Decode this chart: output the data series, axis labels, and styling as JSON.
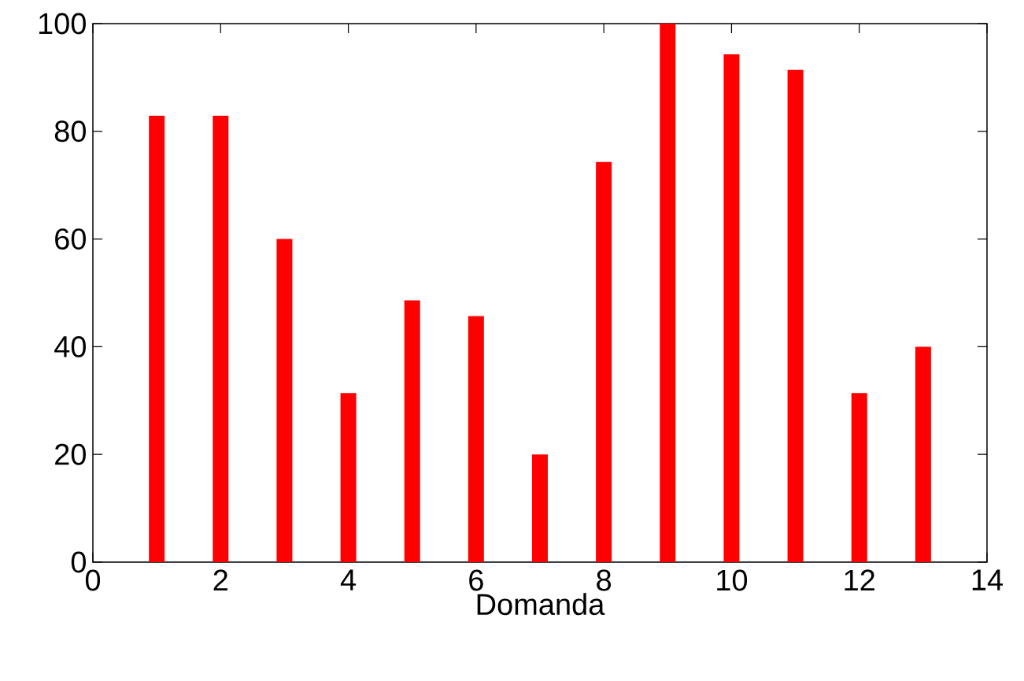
{
  "chart_data": {
    "type": "bar",
    "xlabel": "Domanda",
    "x": [
      1,
      2,
      3,
      4,
      5,
      6,
      7,
      8,
      9,
      10,
      11,
      12,
      13
    ],
    "values": [
      82.9,
      82.9,
      60,
      31.4,
      48.6,
      45.7,
      20,
      74.3,
      100,
      94.3,
      91.4,
      31.4,
      40
    ],
    "color": "#ff0000",
    "xlim": [
      0,
      14
    ],
    "xticks": [
      0,
      2,
      4,
      6,
      8,
      10,
      12,
      14
    ],
    "ylim": [
      0,
      100
    ],
    "yticks": [
      0,
      20,
      40,
      60,
      80,
      100
    ]
  }
}
